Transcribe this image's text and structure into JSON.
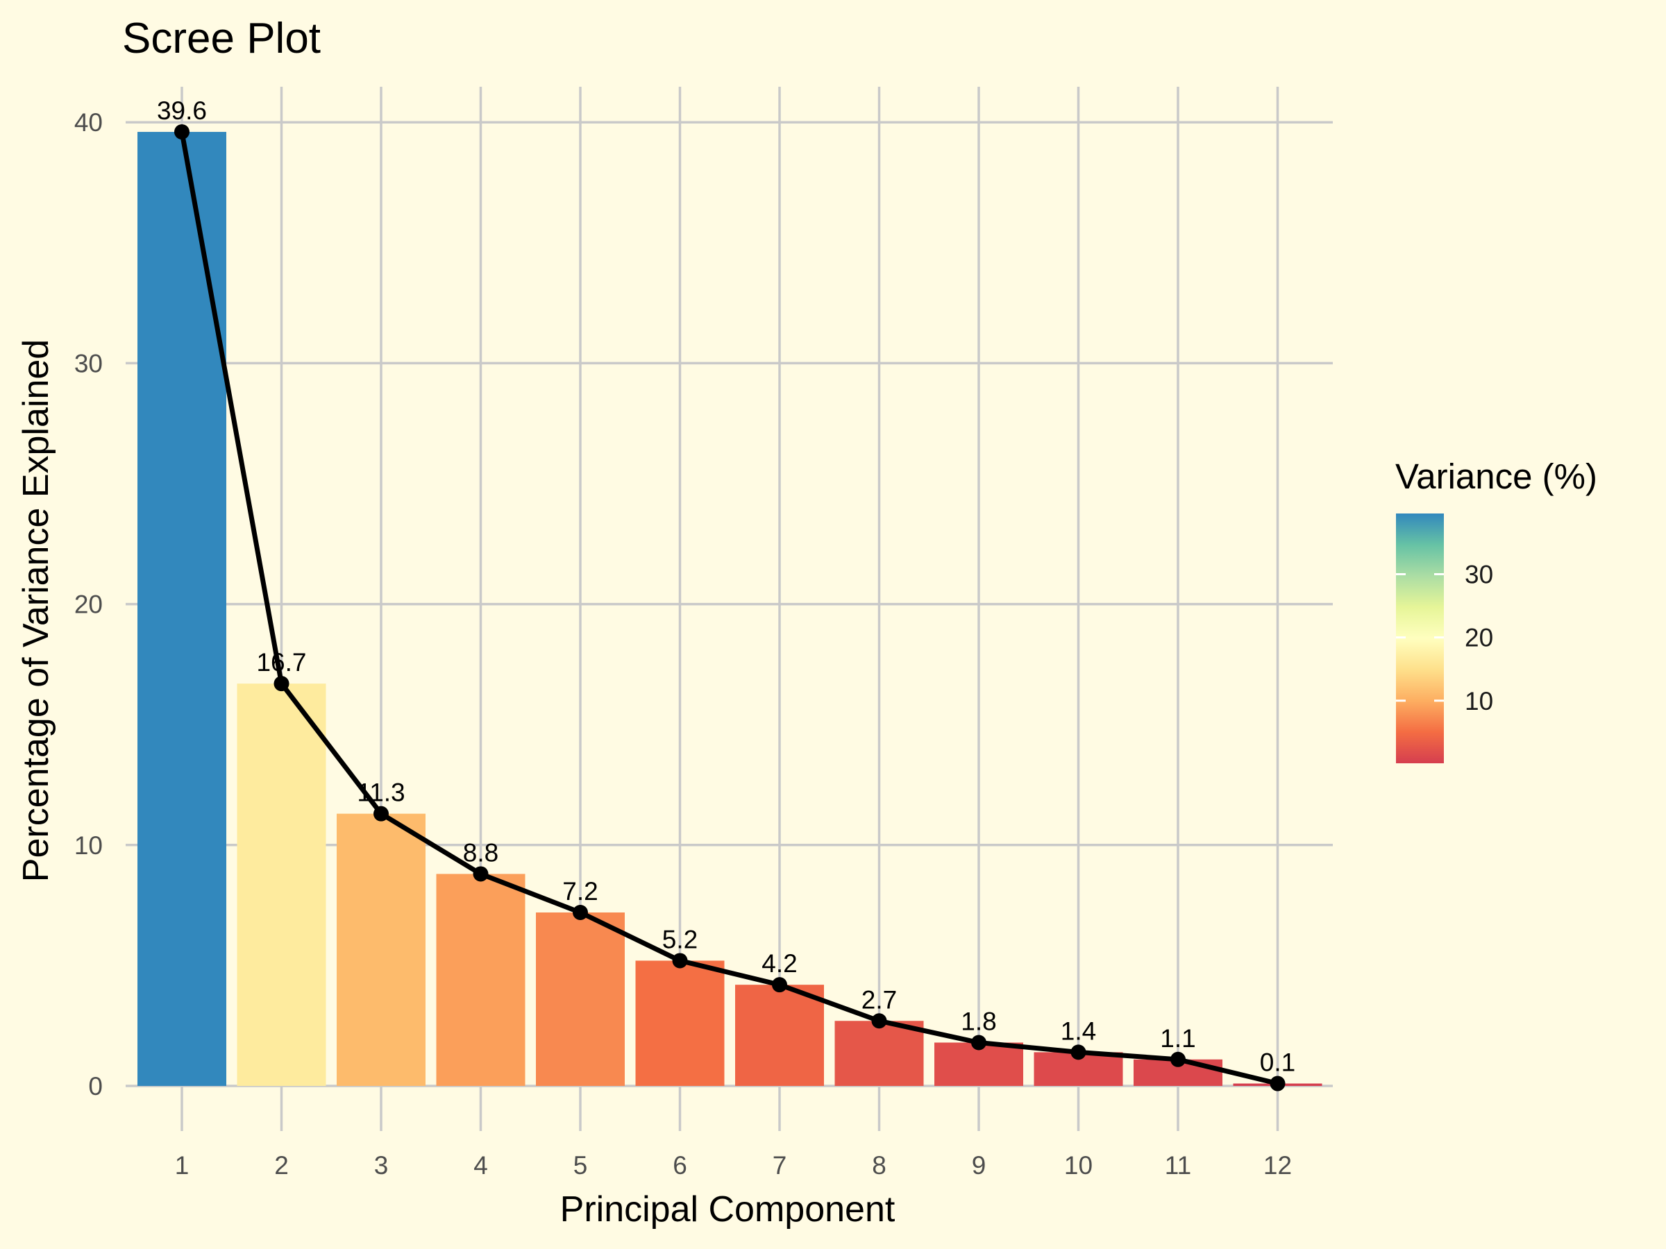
{
  "chart_data": {
    "type": "bar",
    "title": "Scree Plot",
    "xlabel": "Principal Component",
    "ylabel": "Percentage of Variance Explained",
    "categories": [
      "1",
      "2",
      "3",
      "4",
      "5",
      "6",
      "7",
      "8",
      "9",
      "10",
      "11",
      "12"
    ],
    "values": [
      39.6,
      16.7,
      11.3,
      8.8,
      7.2,
      5.2,
      4.2,
      2.7,
      1.8,
      1.4,
      1.1,
      0.1
    ],
    "data_labels": [
      "39.6",
      "16.7",
      "11.3",
      "8.8",
      "7.2",
      "5.2",
      "4.2",
      "2.7",
      "1.8",
      "1.4",
      "1.1",
      "0.1"
    ],
    "overlay": "line with points over bars",
    "ylim": [
      0,
      41
    ],
    "yticks": [
      0,
      10,
      20,
      30,
      40
    ],
    "grid": true,
    "fill_scale": "Spectral (red-yellow-blue), mapped to value",
    "legend": {
      "title": "Variance (%)",
      "position": "right",
      "ticks": [
        10,
        20,
        30
      ],
      "range": [
        0.1,
        39.6
      ],
      "colors": [
        "#d53e4f",
        "#f46d43",
        "#fdae61",
        "#fee08b",
        "#ffffbf",
        "#e6f598",
        "#abdda4",
        "#66c2a5",
        "#3288bd"
      ]
    }
  }
}
